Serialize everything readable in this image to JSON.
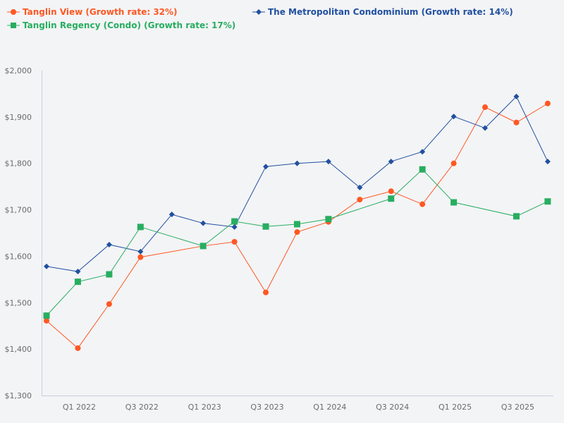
{
  "chart_data": {
    "type": "line",
    "categories": [
      "Q4 2021",
      "Q1 2022",
      "Q2 2022",
      "Q3 2022",
      "Q4 2022",
      "Q1 2023",
      "Q2 2023",
      "Q3 2023",
      "Q4 2023",
      "Q1 2024",
      "Q2 2024",
      "Q3 2024",
      "Q4 2024",
      "Q1 2025",
      "Q2 2025",
      "Q3 2025",
      "Q4 2025"
    ],
    "x_tick_labels": [
      "Q1 2022",
      "Q3 2022",
      "Q1 2023",
      "Q3 2023",
      "Q1 2024",
      "Q3 2024",
      "Q1 2025",
      "Q3 2025"
    ],
    "y_tick_labels": [
      "$1,300",
      "$1,400",
      "$1,500",
      "$1,600",
      "$1,700",
      "$1,800",
      "$1,900",
      "$2,000"
    ],
    "ylim": [
      1300,
      2000
    ],
    "grid": false,
    "legend_position": "top-left",
    "series": [
      {
        "name": "Tanglin View (Growth rate: 32%)",
        "color": "#ff5722",
        "marker": "circle",
        "values": [
          1461,
          1402,
          1497,
          1598,
          null,
          1622,
          1631,
          1522,
          1652,
          1674,
          1722,
          1740,
          1712,
          1800,
          1921,
          1888,
          1929
        ]
      },
      {
        "name": "The Metropolitan Condominium (Growth rate: 14%)",
        "color": "#2150a0",
        "marker": "diamond",
        "values": [
          1578,
          1567,
          1625,
          1610,
          1690,
          1671,
          1663,
          1793,
          1800,
          1804,
          1748,
          1804,
          1825,
          1901,
          1876,
          1944,
          1804
        ]
      },
      {
        "name": "Tanglin Regency (Condo) (Growth rate: 17%)",
        "color": "#27ae60",
        "marker": "square",
        "values": [
          1472,
          1545,
          1561,
          1663,
          null,
          1622,
          1675,
          1664,
          1669,
          1680,
          null,
          1724,
          1787,
          1716,
          null,
          1686,
          1718
        ]
      }
    ]
  }
}
